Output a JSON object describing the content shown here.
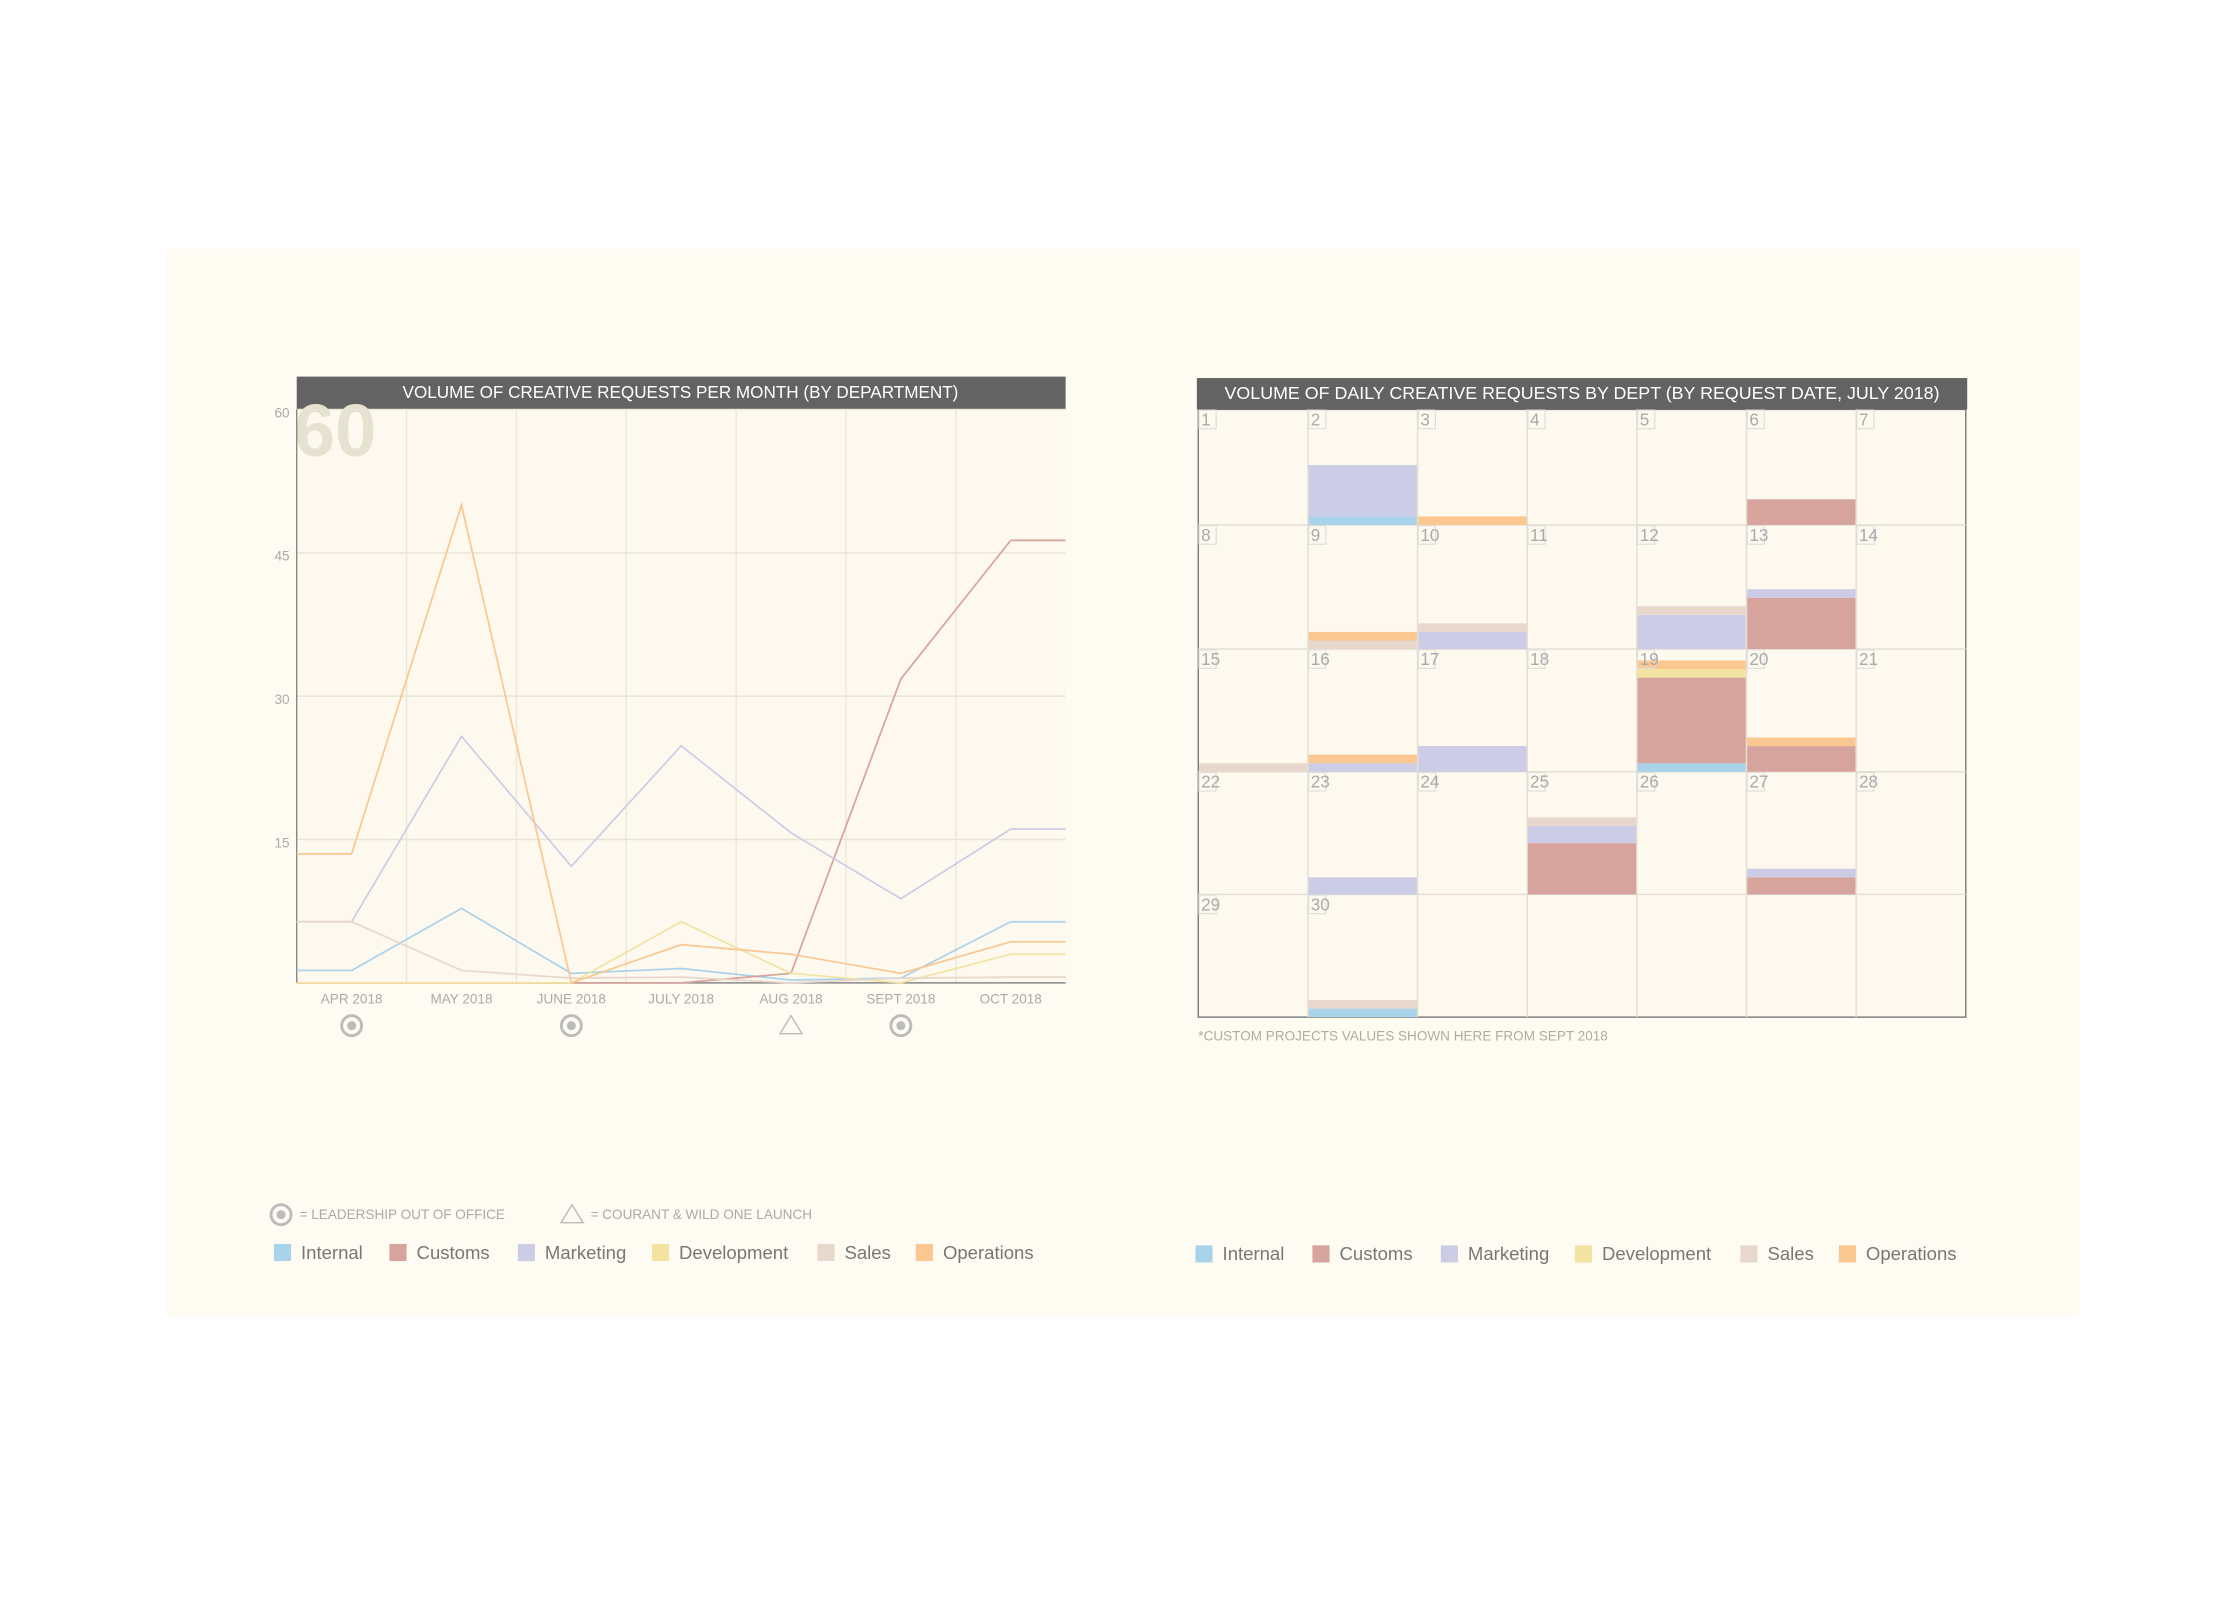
{
  "chart_data": [
    {
      "type": "line",
      "title": "VOLUME OF CREATIVE REQUESTS PER MONTH (BY DEPARTMENT)",
      "highlight_label": "60",
      "categories": [
        "APR 2018",
        "MAY 2018",
        "JUNE 2018",
        "JULY 2018",
        "AUG 2018",
        "SEPT 2018",
        "OCT 2018"
      ],
      "ylim": [
        0,
        60
      ],
      "yticks": [
        15,
        30,
        45,
        60
      ],
      "grid": true,
      "series": [
        {
          "name": "Internal",
          "color": "#a9d3ea",
          "values": [
            1.3,
            7.8,
            1,
            1.5,
            0.3,
            0.5,
            6.4
          ]
        },
        {
          "name": "Customs",
          "color": "#d6a49c",
          "values": [
            0,
            0,
            0,
            0,
            1,
            31.8,
            46.3
          ]
        },
        {
          "name": "Marketing",
          "color": "#cccce6",
          "values": [
            6.4,
            25.8,
            12.2,
            24.8,
            15.7,
            8.8,
            16.1
          ]
        },
        {
          "name": "Development",
          "color": "#f2e3a0",
          "values": [
            0,
            0,
            0,
            6.4,
            1,
            0,
            3
          ]
        },
        {
          "name": "Sales",
          "color": "#e8d7cc",
          "values": [
            6.4,
            1.3,
            0.5,
            0.6,
            0,
            0.5,
            0.6
          ]
        },
        {
          "name": "Operations",
          "color": "#f9c78f",
          "values": [
            13.5,
            50,
            0,
            4,
            3,
            1,
            4.3
          ]
        }
      ],
      "annotations": [
        {
          "symbol": "circle",
          "label": "= LEADERSHIP OUT OF OFFICE",
          "at": [
            0,
            2,
            5
          ]
        },
        {
          "symbol": "triangle",
          "label": "= COURANT & WILD ONE LAUNCH",
          "at": [
            4
          ]
        }
      ]
    },
    {
      "type": "calendar",
      "title": "VOLUME OF DAILY CREATIVE REQUESTS BY DEPT (BY REQUEST DATE, JULY 2018)",
      "note": "*CUSTOM PROJECTS VALUES SHOWN HERE FROM SEPT 2018",
      "days": [
        1,
        2,
        3,
        4,
        5,
        6,
        7,
        8,
        9,
        10,
        11,
        12,
        13,
        14,
        15,
        16,
        17,
        18,
        19,
        20,
        21,
        22,
        23,
        24,
        25,
        26,
        27,
        28,
        29,
        30
      ],
      "ylim": [
        0,
        14
      ],
      "series": [
        {
          "name": "Internal",
          "color": "#a9d3ea",
          "values": [
            0,
            1,
            0,
            0,
            0,
            0,
            0,
            0,
            0,
            0,
            0,
            0,
            0,
            0,
            0,
            0,
            0,
            0,
            1,
            0,
            0,
            0,
            0,
            0,
            0,
            0,
            0,
            0,
            0,
            1
          ]
        },
        {
          "name": "Customs",
          "color": "#d6a49c",
          "values": [
            0,
            0,
            0,
            0,
            0,
            3,
            0,
            0,
            0,
            0,
            0,
            0,
            6,
            0,
            0,
            0,
            0,
            0,
            10,
            3,
            0,
            0,
            0,
            0,
            6,
            0,
            2,
            0,
            0,
            0
          ]
        },
        {
          "name": "Marketing",
          "color": "#cccce6",
          "values": [
            0,
            6,
            0,
            0,
            0,
            0,
            0,
            0,
            0,
            2,
            0,
            4,
            1,
            0,
            0,
            1,
            3,
            0,
            0,
            0,
            0,
            0,
            2,
            0,
            2,
            0,
            1,
            0,
            0,
            0
          ]
        },
        {
          "name": "Development",
          "color": "#f2e3a0",
          "values": [
            0,
            0,
            0,
            0,
            0,
            0,
            0,
            0,
            0,
            0,
            0,
            0,
            0,
            0,
            0,
            0,
            0,
            0,
            1,
            0,
            0,
            0,
            0,
            0,
            0,
            0,
            0,
            0,
            0,
            0
          ]
        },
        {
          "name": "Sales",
          "color": "#e8d7cc",
          "values": [
            0,
            0,
            0,
            0,
            0,
            0,
            0,
            0,
            1,
            1,
            0,
            1,
            0,
            0,
            1,
            0,
            0,
            0,
            0,
            0,
            0,
            0,
            0,
            0,
            1,
            0,
            0,
            0,
            0,
            1
          ]
        },
        {
          "name": "Operations",
          "color": "#f9c78f",
          "values": [
            0,
            0,
            1,
            0,
            0,
            0,
            0,
            0,
            1,
            0,
            0,
            0,
            0,
            0,
            0,
            1,
            0,
            0,
            1,
            1,
            0,
            0,
            0,
            0,
            0,
            0,
            0,
            0,
            0,
            0
          ]
        }
      ]
    }
  ]
}
